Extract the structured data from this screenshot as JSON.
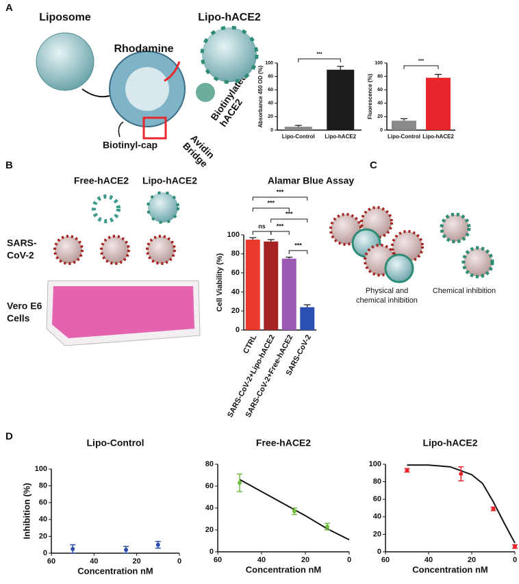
{
  "figure": {
    "panels": [
      "A",
      "B",
      "C",
      "D"
    ],
    "liposome": "Liposome",
    "lipo_hace2": "Lipo-hACE2",
    "rhodamine": "Rhodamine",
    "biotinyl_cap": "Biotinyl-cap",
    "avidin_bridge": [
      "Avidin",
      "Bridge"
    ],
    "biotinylated_hace2": [
      "Biotinylated",
      "hACE2"
    ],
    "free_hace2": "Free-hACE2",
    "lipo_hace2_b": "Lipo-hACE2",
    "sars": [
      "SARS-",
      "CoV-2"
    ],
    "vero": [
      "Vero E6",
      "Cells"
    ],
    "physical": [
      "Physical and",
      "chemical inhibition"
    ],
    "chemical": "Chemical inhibition"
  },
  "chart_data": [
    {
      "type": "bar",
      "ylabel": "Absorbance 450 OD (%)",
      "categories": [
        "Lipo-Control",
        "Lipo-hACE2"
      ],
      "values": [
        5,
        90
      ],
      "errors": [
        2,
        5
      ],
      "colors": [
        "#8a8a8a",
        "#1c1c1c"
      ],
      "ylim": [
        0,
        100
      ],
      "yticks": [
        0,
        20,
        40,
        60,
        80,
        100
      ],
      "annotations": [
        "***"
      ]
    },
    {
      "type": "bar",
      "ylabel": "Fluorescence (%)",
      "categories": [
        "Lipo-Control",
        "Lipo-hACE2"
      ],
      "values": [
        14,
        78
      ],
      "errors": [
        3,
        5
      ],
      "colors": [
        "#8a8a8a",
        "#e8262b"
      ],
      "ylim": [
        0,
        100
      ],
      "yticks": [
        0,
        20,
        40,
        60,
        80,
        100
      ],
      "annotations": [
        "***"
      ]
    },
    {
      "type": "bar",
      "title": "Alamar Blue Assay",
      "ylabel": "Cell Viability (%)",
      "categories": [
        "CTRL",
        "SARS-CoV-2+Lipo-hACE2",
        "SARS-CoV-2+Free-hACE2",
        "SARS-CoV-2"
      ],
      "values": [
        95,
        93,
        75,
        24
      ],
      "errors": [
        2,
        2,
        1.5,
        2.5
      ],
      "colors": [
        "#ea3a2c",
        "#a52322",
        "#9b5bb4",
        "#2d50b5"
      ],
      "ylim": [
        0,
        100
      ],
      "yticks": [
        0,
        20,
        40,
        60,
        80,
        100
      ],
      "annotations": [
        "***",
        "***",
        "***",
        "ns",
        "***",
        "***"
      ]
    },
    {
      "type": "scatter",
      "title": "Lipo-Control",
      "xlabel": "Concentration nM",
      "ylabel": "Inhibition (%)",
      "x": [
        50,
        25,
        10
      ],
      "values": [
        5,
        4,
        10
      ],
      "errors": [
        5,
        4,
        4
      ],
      "color": "#2b4fa8",
      "xlim": [
        60,
        0
      ],
      "xticks": [
        60,
        40,
        20,
        0
      ],
      "ylim": [
        0,
        100
      ],
      "yticks": [
        0,
        20,
        40,
        60,
        80,
        100
      ]
    },
    {
      "type": "scatter",
      "title": "Free-hACE2",
      "xlabel": "Concentration nM",
      "x": [
        50,
        25,
        10
      ],
      "values": [
        63,
        37,
        23
      ],
      "errors": [
        8,
        3,
        3
      ],
      "color": "#6cbf3e",
      "fit": {
        "x": [
          50,
          40,
          30,
          20,
          10,
          0
        ],
        "values": [
          66,
          55,
          44,
          33,
          21,
          11
        ]
      },
      "xlim": [
        60,
        0
      ],
      "xticks": [
        60,
        40,
        20,
        0
      ],
      "ylim": [
        0,
        80
      ],
      "yticks": [
        0,
        20,
        40,
        60,
        80
      ]
    },
    {
      "type": "scatter",
      "title": "Lipo-hACE2",
      "xlabel": "Concentration nM",
      "x": [
        50,
        25,
        10,
        0
      ],
      "values": [
        93,
        89,
        49,
        6
      ],
      "errors": [
        2,
        8,
        2,
        2
      ],
      "color": "#e8262b",
      "fit": {
        "x": [
          50,
          40,
          30,
          20,
          15,
          10,
          5,
          0
        ],
        "values": [
          99,
          99,
          97,
          88,
          78,
          57,
          33,
          10
        ]
      },
      "xlim": [
        60,
        0
      ],
      "xticks": [
        60,
        40,
        20,
        0
      ],
      "ylim": [
        0,
        100
      ],
      "yticks": [
        0,
        20,
        40,
        60,
        80,
        100
      ]
    }
  ]
}
